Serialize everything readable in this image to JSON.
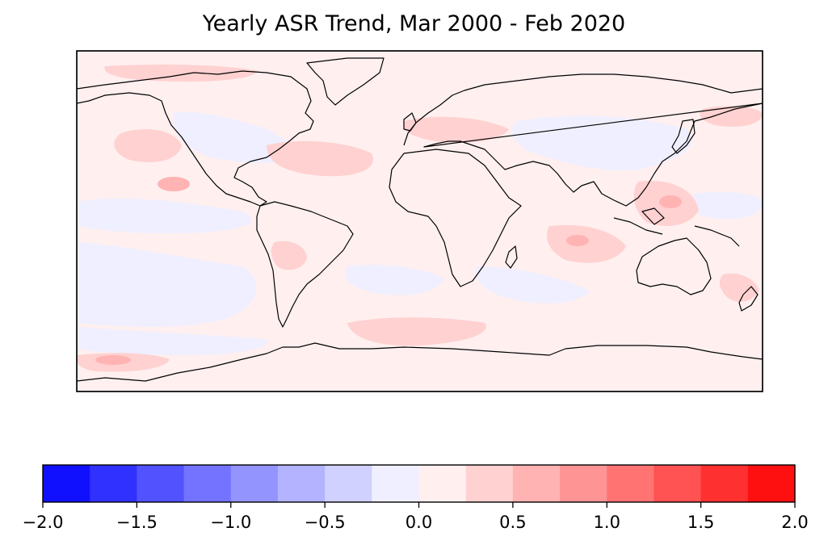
{
  "title": "Yearly ASR Trend, Mar 2000 - Feb 2020",
  "colorbar": {
    "ticks": [
      "−2.0",
      "−1.5",
      "−1.0",
      "−0.5",
      "0.0",
      "0.5",
      "1.0",
      "1.5",
      "2.0"
    ],
    "tick_values": [
      -2.0,
      -1.5,
      -1.0,
      -0.5,
      0.0,
      0.5,
      1.0,
      1.5,
      2.0
    ],
    "levels": [
      -2.0,
      -1.75,
      -1.5,
      -1.25,
      -1.0,
      -0.75,
      -0.5,
      -0.25,
      0.0,
      0.25,
      0.5,
      0.75,
      1.0,
      1.25,
      1.5,
      1.75,
      2.0
    ],
    "colors": [
      "#1010ff",
      "#3030ff",
      "#5252ff",
      "#7373ff",
      "#9494ff",
      "#b3b3ff",
      "#d1d1ff",
      "#efefff",
      "#ffefef",
      "#ffd1d1",
      "#ffb3b3",
      "#ff9494",
      "#ff7373",
      "#ff5252",
      "#ff3030",
      "#ff1010"
    ]
  },
  "map": {
    "projection": "PlateCarree",
    "extent": [
      -180,
      180,
      -90,
      90
    ],
    "background_color": "#ffefef",
    "regions": [
      {
        "name": "north-atlantic-warm",
        "color": "#ffd1d1"
      },
      {
        "name": "east-pacific-warm",
        "color": "#ffb3b3"
      },
      {
        "name": "southern-ocean-warm",
        "color": "#ffd1d1"
      },
      {
        "name": "equatorial-cool",
        "color": "#efefff"
      },
      {
        "name": "southern-pacific-cool",
        "color": "#efefff"
      }
    ]
  }
}
